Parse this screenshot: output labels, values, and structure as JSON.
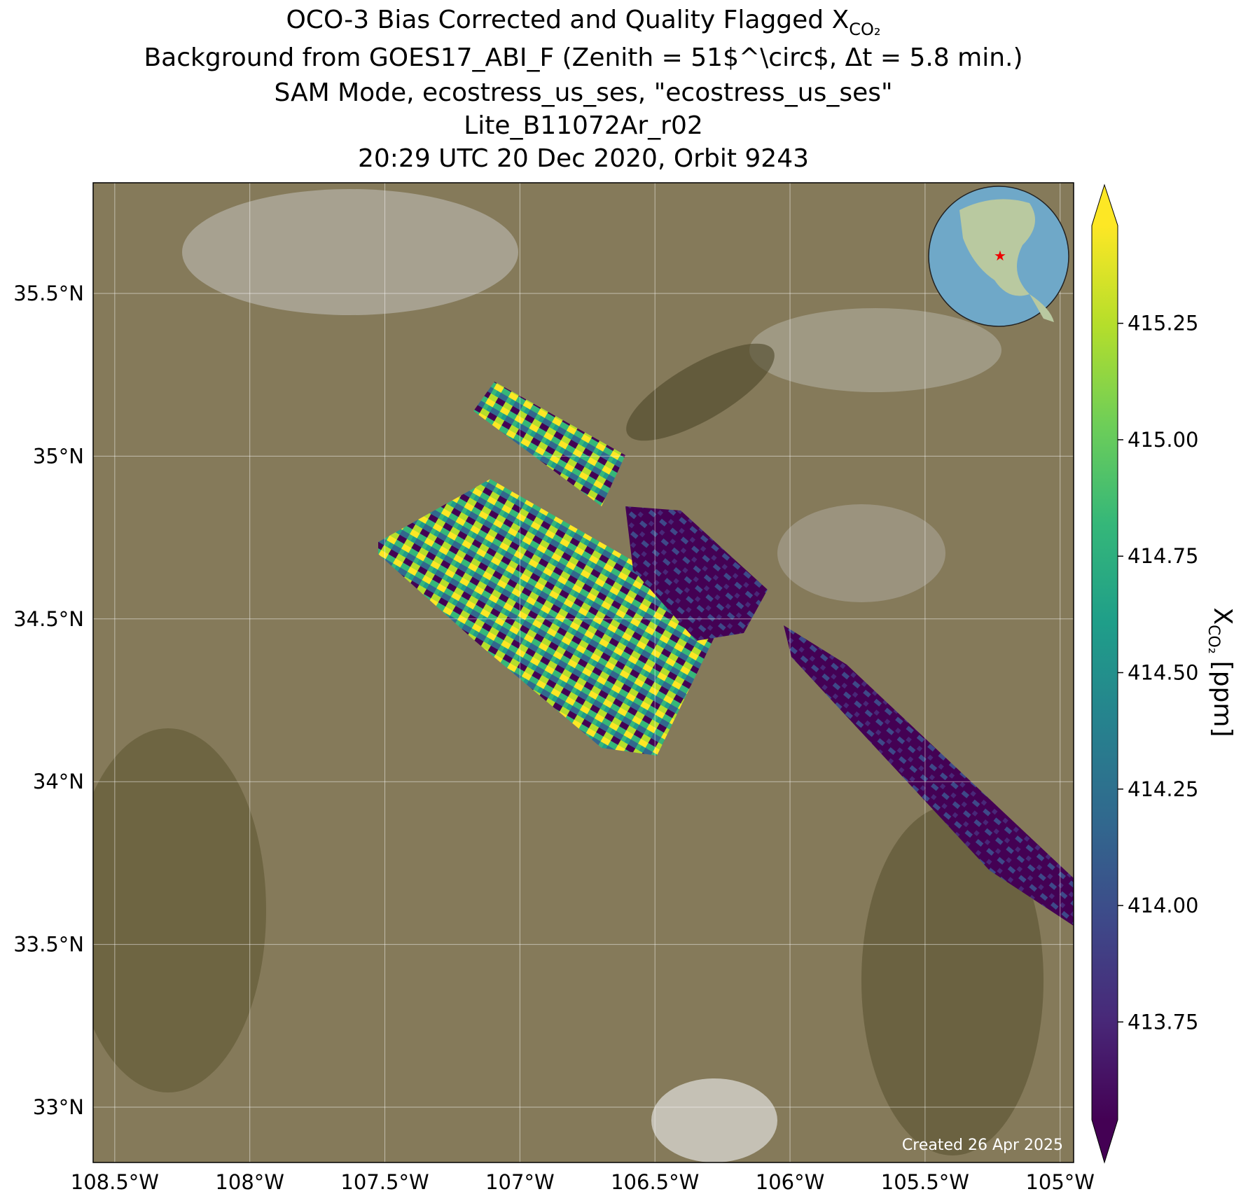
{
  "chart_data": {
    "type": "map",
    "title_lines": [
      "OCO-3 Bias Corrected and Quality Flagged X",
      "Background from GOES17_ABI_F (Zenith = 51$^\\circ$, Δt =  5.8 min.)",
      "SAM Mode, ecostress_us_ses, \"ecostress_us_ses\"",
      "Lite_B11072Ar_r02",
      "20:29 UTC 20 Dec 2020, Orbit 9243"
    ],
    "title_subscript": "CO₂",
    "xlim": [
      -108.58,
      -104.95
    ],
    "ylim": [
      32.83,
      35.84
    ],
    "xticks": [
      {
        "value": -108.5,
        "label": "108.5°W"
      },
      {
        "value": -108,
        "label": "108°W"
      },
      {
        "value": -107.5,
        "label": "107.5°W"
      },
      {
        "value": -107,
        "label": "107°W"
      },
      {
        "value": -106.5,
        "label": "106.5°W"
      },
      {
        "value": -106,
        "label": "106°W"
      },
      {
        "value": -105.5,
        "label": "105.5°W"
      },
      {
        "value": -105,
        "label": "105°W"
      }
    ],
    "yticks": [
      {
        "value": 33,
        "label": "33°N"
      },
      {
        "value": 33.5,
        "label": "33.5°N"
      },
      {
        "value": 34,
        "label": "34°N"
      },
      {
        "value": 34.5,
        "label": "34.5°N"
      },
      {
        "value": 35,
        "label": "35°N"
      },
      {
        "value": 35.5,
        "label": "35.5°N"
      }
    ],
    "grid": true,
    "colorbar": {
      "label": "X",
      "label_subscript": "CO₂",
      "label_unit": "[ppm]",
      "clim": [
        413.54,
        415.46
      ],
      "ticks": [
        413.75,
        {
          "value": 414,
          "label": "414.00"
        },
        414.25,
        {
          "value": 414.5,
          "label": "414.50"
        },
        414.75,
        {
          "value": 415,
          "label": "415.00"
        },
        415.25
      ],
      "colormap": [
        "#440154",
        "#482878",
        "#3e4989",
        "#31688e",
        "#26828e",
        "#1f9e89",
        "#35b779",
        "#6ece58",
        "#b5de2b",
        "#fde725"
      ]
    },
    "annotation": "Created 26 Apr 2025"
  }
}
